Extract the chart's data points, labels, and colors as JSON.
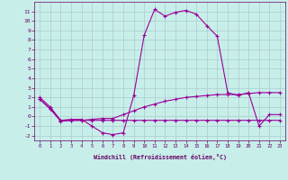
{
  "xlabel": "Windchill (Refroidissement éolien,°C)",
  "background_color": "#c8eeea",
  "grid_color": "#aacccc",
  "line_color": "#990099",
  "xdata": [
    0,
    1,
    2,
    3,
    4,
    5,
    6,
    7,
    8,
    9,
    10,
    11,
    12,
    13,
    14,
    15,
    16,
    17,
    18,
    19,
    20,
    21,
    22,
    23
  ],
  "curve1": [
    2.0,
    1.0,
    -0.4,
    -0.3,
    -0.3,
    -1.0,
    -1.7,
    -1.9,
    -1.7,
    2.2,
    8.5,
    11.2,
    10.5,
    10.9,
    11.1,
    10.7,
    9.5,
    8.4,
    2.5,
    2.2,
    2.5,
    -1.0,
    0.2,
    0.2
  ],
  "curve2": [
    1.8,
    0.8,
    -0.5,
    -0.4,
    -0.4,
    -0.4,
    -0.4,
    -0.4,
    -0.4,
    -0.4,
    -0.4,
    -0.4,
    -0.4,
    -0.4,
    -0.4,
    -0.4,
    -0.4,
    -0.4,
    -0.4,
    -0.4,
    -0.4,
    -0.4,
    -0.4,
    -0.4
  ],
  "curve3": [
    1.8,
    0.8,
    -0.4,
    -0.4,
    -0.4,
    -0.3,
    -0.2,
    -0.2,
    0.2,
    0.6,
    1.0,
    1.3,
    1.6,
    1.8,
    2.0,
    2.1,
    2.2,
    2.3,
    2.3,
    2.3,
    2.4,
    2.5,
    2.5,
    2.5
  ],
  "ylim": [
    -2.5,
    12
  ],
  "xlim": [
    -0.5,
    23.5
  ],
  "yticks": [
    -2,
    -1,
    0,
    1,
    2,
    3,
    4,
    5,
    6,
    7,
    8,
    9,
    10,
    11
  ],
  "xticks": [
    0,
    1,
    2,
    3,
    4,
    5,
    6,
    7,
    8,
    9,
    10,
    11,
    12,
    13,
    14,
    15,
    16,
    17,
    18,
    19,
    20,
    21,
    22,
    23
  ]
}
